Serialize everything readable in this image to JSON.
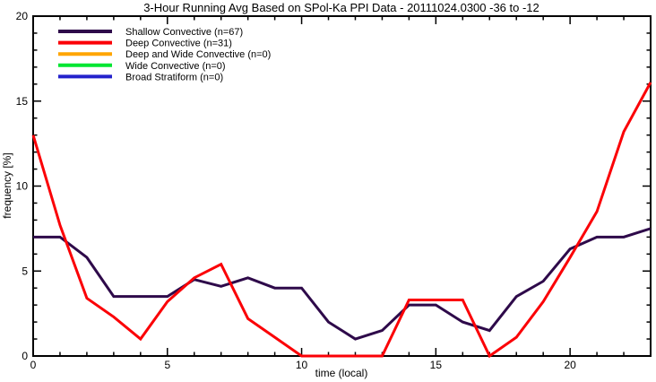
{
  "chart_data": {
    "type": "line",
    "title": "3-Hour Running Avg Based on SPol-Ka PPI Data - 20111024.0300 -36 to -12",
    "xlabel": "time (local)",
    "ylabel": "frequency [%]",
    "xlim": [
      0,
      23
    ],
    "ylim": [
      0,
      20
    ],
    "xticks": [
      0,
      5,
      10,
      15,
      20
    ],
    "yticks": [
      0,
      5,
      10,
      15,
      20
    ],
    "minor_tick_interval": 1,
    "grid": false,
    "legend_position": "top-left-inside",
    "axis_color": "#000000",
    "x": [
      0,
      1,
      2,
      3,
      4,
      5,
      6,
      7,
      8,
      9,
      10,
      11,
      12,
      13,
      14,
      15,
      16,
      17,
      18,
      19,
      20,
      21,
      22,
      23
    ],
    "series": [
      {
        "name": "Shallow Convective (n=67)",
        "color": "#2e0a4a",
        "line_width": 3,
        "values": [
          7.0,
          7.0,
          5.8,
          3.5,
          3.5,
          3.5,
          4.5,
          4.1,
          4.6,
          4.0,
          4.0,
          2.0,
          1.0,
          1.5,
          3.0,
          3.0,
          2.0,
          1.5,
          3.5,
          4.4,
          6.3,
          7.0,
          7.0,
          7.5
        ]
      },
      {
        "name": "Deep Convective (n=31)",
        "color": "#fb0006",
        "line_width": 3,
        "values": [
          13.0,
          7.7,
          3.4,
          2.3,
          1.0,
          3.2,
          4.6,
          5.4,
          2.2,
          1.1,
          0.0,
          0.0,
          0.0,
          0.0,
          3.3,
          3.3,
          3.3,
          0.0,
          1.1,
          3.2,
          5.8,
          8.5,
          13.2,
          16.1
        ]
      },
      {
        "name": "Deep and Wide Convective (n=0)",
        "color": "#ffa500",
        "line_width": 2,
        "values": [
          0,
          0,
          0,
          0,
          0,
          0,
          0,
          0,
          0,
          0,
          0,
          0,
          0,
          0,
          0,
          0,
          0,
          0,
          0,
          0,
          0,
          0,
          0,
          0
        ]
      },
      {
        "name": "Wide Convective (n=0)",
        "color": "#00e632",
        "line_width": 2,
        "values": [
          0,
          0,
          0,
          0,
          0,
          0,
          0,
          0,
          0,
          0,
          0,
          0,
          0,
          0,
          0,
          0,
          0,
          0,
          0,
          0,
          0,
          0,
          0,
          0
        ]
      },
      {
        "name": "Broad Stratiform (n=0)",
        "color": "#2422cc",
        "line_width": 2,
        "values": [
          0,
          0,
          0,
          0,
          0,
          0,
          0,
          0,
          0,
          0,
          0,
          0,
          0,
          0,
          0,
          0,
          0,
          0,
          0,
          0,
          0,
          0,
          0,
          0
        ]
      }
    ]
  }
}
